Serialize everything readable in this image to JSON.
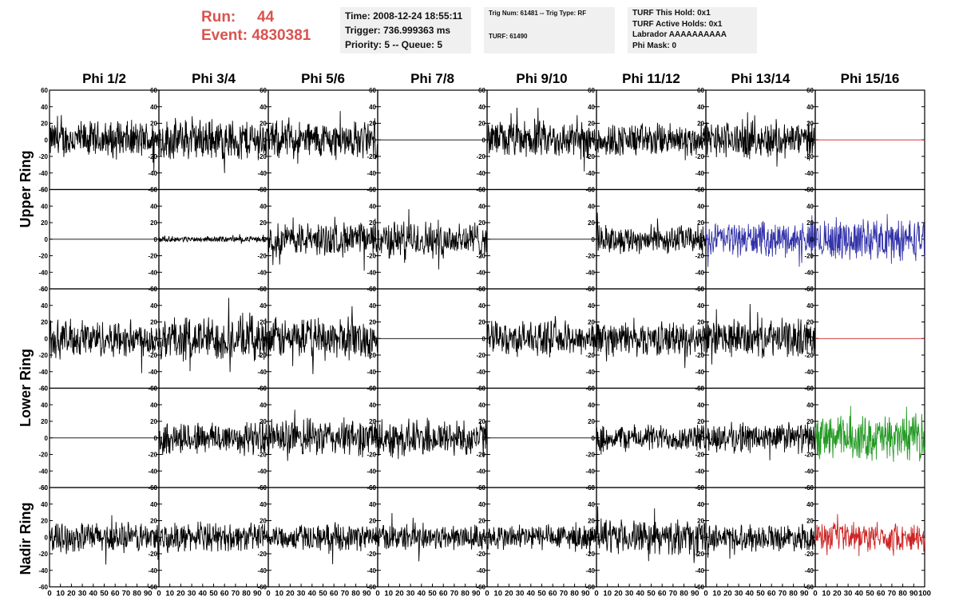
{
  "header": {
    "run_label": "Run:",
    "run_value": "44",
    "event_label": "Event:",
    "event_value": "4830381",
    "time": "Time: 2008-12-24 18:55:11",
    "trigger": "Trigger: 736.999363 ms",
    "priority": "Priority: 5 -- Queue: 5",
    "trig_num": "Trig Num: 61481 -- Trig Type: RF",
    "turf": "TURF: 61490",
    "turf_this_hold": "TURF This Hold: 0x1",
    "turf_active_holds": "TURF Active Holds: 0x1",
    "labrador": "Labrador AAAAAAAAAA",
    "phi_mask": "Phi Mask: 0"
  },
  "columns": [
    "Phi 1/2",
    "Phi 3/4",
    "Phi 5/6",
    "Phi 7/8",
    "Phi 9/10",
    "Phi 11/12",
    "Phi 13/14",
    "Phi 15/16"
  ],
  "ring_labels": {
    "upper": "Upper Ring",
    "lower": "Lower Ring",
    "nadir": "Nadir Ring"
  },
  "colors": {
    "run_text": "#d9534f",
    "info_bg": "#f0f0f0",
    "trace_default": "#000000",
    "trace_red": "#cc2222",
    "trace_blue": "#3333aa",
    "trace_green": "#229922"
  },
  "chart_data": {
    "type": "line",
    "description_axes": "grid of waveform panels, 5 rows x 8 columns",
    "xlim": [
      0,
      100
    ],
    "ylim": [
      -60,
      60
    ],
    "yticks": [
      -60,
      -40,
      -20,
      0,
      20,
      40,
      60
    ],
    "xtick_labels_bottom": [
      "0",
      "10",
      "20",
      "30",
      "40",
      "50",
      "60",
      "70",
      "80",
      "90",
      "100"
    ],
    "panels": [
      [
        {
          "amp": 20,
          "color": "trace_default"
        },
        {
          "amp": 22,
          "color": "trace_default"
        },
        {
          "amp": 20,
          "color": "trace_default"
        },
        {
          "amp": 0,
          "color": "trace_default"
        },
        {
          "amp": 20,
          "color": "trace_default"
        },
        {
          "amp": 18,
          "color": "trace_default"
        },
        {
          "amp": 20,
          "color": "trace_default"
        },
        {
          "amp": 0,
          "color": "trace_red"
        }
      ],
      [
        {
          "amp": 0,
          "color": "trace_default"
        },
        {
          "amp": 3,
          "color": "trace_default"
        },
        {
          "amp": 18,
          "color": "trace_default"
        },
        {
          "amp": 20,
          "color": "trace_default"
        },
        {
          "amp": 0,
          "color": "trace_default"
        },
        {
          "amp": 15,
          "color": "trace_default"
        },
        {
          "amp": 18,
          "color": "trace_blue"
        },
        {
          "amp": 22,
          "color": "trace_blue"
        }
      ],
      [
        {
          "amp": 20,
          "color": "trace_default"
        },
        {
          "amp": 24,
          "color": "trace_default"
        },
        {
          "amp": 22,
          "color": "trace_default"
        },
        {
          "amp": 0,
          "color": "trace_default"
        },
        {
          "amp": 18,
          "color": "trace_default"
        },
        {
          "amp": 18,
          "color": "trace_default"
        },
        {
          "amp": 20,
          "color": "trace_default"
        },
        {
          "amp": 0,
          "color": "trace_red"
        }
      ],
      [
        {
          "amp": 0,
          "color": "trace_default"
        },
        {
          "amp": 18,
          "color": "trace_default"
        },
        {
          "amp": 20,
          "color": "trace_default"
        },
        {
          "amp": 20,
          "color": "trace_default"
        },
        {
          "amp": 0,
          "color": "trace_default"
        },
        {
          "amp": 14,
          "color": "trace_default"
        },
        {
          "amp": 16,
          "color": "trace_default"
        },
        {
          "amp": 24,
          "color": "trace_green"
        }
      ],
      [
        {
          "amp": 16,
          "color": "trace_default"
        },
        {
          "amp": 15,
          "color": "trace_default"
        },
        {
          "amp": 14,
          "color": "trace_default"
        },
        {
          "amp": 14,
          "color": "trace_default"
        },
        {
          "amp": 14,
          "color": "trace_default"
        },
        {
          "amp": 18,
          "color": "trace_default"
        },
        {
          "amp": 14,
          "color": "trace_default"
        },
        {
          "amp": 15,
          "color": "trace_red"
        }
      ]
    ]
  }
}
